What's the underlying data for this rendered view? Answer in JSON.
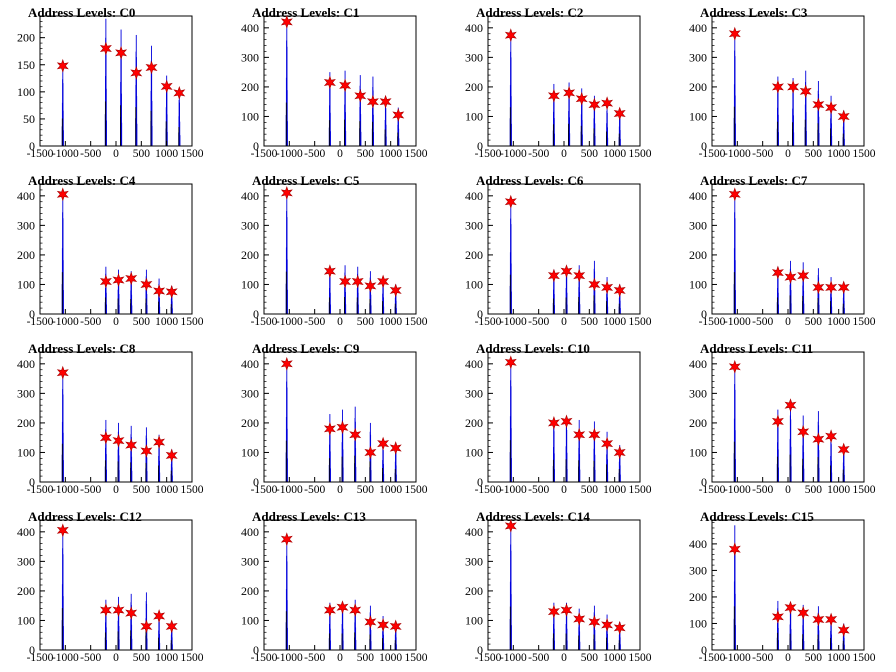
{
  "window": {
    "title": "Address Levels"
  },
  "colors": {
    "hist": "#0000dd",
    "peak_marker": "#ff0000",
    "marker_outline": "#aa0000",
    "axis": "#000000"
  },
  "chart_data": [
    {
      "type": "line",
      "title": "Address Levels: C0",
      "xlim": [
        -1500,
        1500
      ],
      "ylim": [
        0,
        240
      ],
      "yticks": [
        0,
        50,
        100,
        150,
        200
      ],
      "xticks": [
        -1500,
        -1000,
        -500,
        0,
        500,
        1000,
        1500
      ],
      "grid": false,
      "peaks_x": [
        -1050,
        -200,
        100,
        400,
        700,
        1000,
        1250
      ],
      "peaks_y": [
        148,
        180,
        172,
        135,
        145,
        110,
        98
      ],
      "max_y": [
        145,
        235,
        215,
        205,
        185,
        130,
        100
      ]
    },
    {
      "type": "line",
      "title": "Address Levels: C1",
      "xlim": [
        -1500,
        1500
      ],
      "ylim": [
        0,
        440
      ],
      "yticks": [
        0,
        100,
        200,
        300,
        400
      ],
      "xticks": [
        -1500,
        -1000,
        -500,
        0,
        500,
        1000,
        1500
      ],
      "grid": false,
      "peaks_x": [
        -1050,
        -200,
        100,
        400,
        650,
        900,
        1150
      ],
      "peaks_y": [
        420,
        215,
        205,
        170,
        150,
        150,
        105
      ],
      "max_y": [
        420,
        250,
        255,
        240,
        235,
        160,
        130
      ]
    },
    {
      "type": "line",
      "title": "Address Levels: C2",
      "xlim": [
        -1500,
        1500
      ],
      "ylim": [
        0,
        440
      ],
      "yticks": [
        0,
        100,
        200,
        300,
        400
      ],
      "xticks": [
        -1500,
        -1000,
        -500,
        0,
        500,
        1000,
        1500
      ],
      "grid": false,
      "peaks_x": [
        -1050,
        -200,
        100,
        350,
        600,
        850,
        1100
      ],
      "peaks_y": [
        375,
        170,
        180,
        160,
        140,
        145,
        110
      ],
      "max_y": [
        375,
        210,
        215,
        195,
        170,
        140,
        120
      ]
    },
    {
      "type": "line",
      "title": "Address Levels: C3",
      "xlim": [
        -1500,
        1500
      ],
      "ylim": [
        0,
        440
      ],
      "yticks": [
        0,
        100,
        200,
        300,
        400
      ],
      "xticks": [
        -1500,
        -1000,
        -500,
        0,
        500,
        1000,
        1500
      ],
      "grid": false,
      "peaks_x": [
        -1050,
        -200,
        100,
        350,
        600,
        850,
        1100
      ],
      "peaks_y": [
        380,
        200,
        200,
        185,
        140,
        130,
        100
      ],
      "max_y": [
        380,
        235,
        230,
        255,
        220,
        170,
        120
      ]
    },
    {
      "type": "line",
      "title": "Address Levels: C4",
      "xlim": [
        -1500,
        1500
      ],
      "ylim": [
        0,
        440
      ],
      "yticks": [
        0,
        100,
        200,
        300,
        400
      ],
      "xticks": [
        -1500,
        -1000,
        -500,
        0,
        500,
        1000,
        1500
      ],
      "grid": false,
      "peaks_x": [
        -1050,
        -200,
        50,
        300,
        600,
        850,
        1100
      ],
      "peaks_y": [
        405,
        110,
        115,
        120,
        100,
        78,
        75
      ],
      "max_y": [
        405,
        160,
        150,
        145,
        150,
        120,
        95
      ]
    },
    {
      "type": "line",
      "title": "Address Levels: C5",
      "xlim": [
        -1500,
        1500
      ],
      "ylim": [
        0,
        440
      ],
      "yticks": [
        0,
        100,
        200,
        300,
        400
      ],
      "xticks": [
        -1500,
        -1000,
        -500,
        0,
        500,
        1000,
        1500
      ],
      "grid": false,
      "peaks_x": [
        -1050,
        -200,
        100,
        350,
        600,
        850,
        1100
      ],
      "peaks_y": [
        410,
        145,
        110,
        110,
        95,
        110,
        80
      ],
      "max_y": [
        410,
        160,
        165,
        160,
        145,
        125,
        100
      ]
    },
    {
      "type": "line",
      "title": "Address Levels: C6",
      "xlim": [
        -1500,
        1500
      ],
      "ylim": [
        0,
        440
      ],
      "yticks": [
        0,
        100,
        200,
        300,
        400
      ],
      "xticks": [
        -1500,
        -1000,
        -500,
        0,
        500,
        1000,
        1500
      ],
      "grid": false,
      "peaks_x": [
        -1050,
        -200,
        50,
        300,
        600,
        850,
        1100
      ],
      "peaks_y": [
        380,
        130,
        145,
        130,
        100,
        90,
        80
      ],
      "max_y": [
        380,
        150,
        160,
        165,
        180,
        125,
        100
      ]
    },
    {
      "type": "line",
      "title": "Address Levels: C7",
      "xlim": [
        -1500,
        1500
      ],
      "ylim": [
        0,
        440
      ],
      "yticks": [
        0,
        100,
        200,
        300,
        400
      ],
      "xticks": [
        -1500,
        -1000,
        -500,
        0,
        500,
        1000,
        1500
      ],
      "grid": false,
      "peaks_x": [
        -1050,
        -200,
        50,
        300,
        600,
        850,
        1100
      ],
      "peaks_y": [
        405,
        140,
        125,
        130,
        90,
        90,
        90
      ],
      "max_y": [
        405,
        160,
        180,
        175,
        155,
        125,
        100
      ]
    },
    {
      "type": "line",
      "title": "Address Levels: C8",
      "xlim": [
        -1500,
        1500
      ],
      "ylim": [
        0,
        440
      ],
      "yticks": [
        0,
        100,
        200,
        300,
        400
      ],
      "xticks": [
        -1500,
        -1000,
        -500,
        0,
        500,
        1000,
        1500
      ],
      "grid": false,
      "peaks_x": [
        -1050,
        -200,
        50,
        300,
        600,
        850,
        1100
      ],
      "peaks_y": [
        370,
        150,
        140,
        125,
        105,
        135,
        90
      ],
      "max_y": [
        370,
        210,
        200,
        190,
        185,
        160,
        110
      ]
    },
    {
      "type": "line",
      "title": "Address Levels: C9",
      "xlim": [
        -1500,
        1500
      ],
      "ylim": [
        0,
        440
      ],
      "yticks": [
        0,
        100,
        200,
        300,
        400
      ],
      "xticks": [
        -1500,
        -1000,
        -500,
        0,
        500,
        1000,
        1500
      ],
      "grid": false,
      "peaks_x": [
        -1050,
        -200,
        50,
        300,
        600,
        850,
        1100
      ],
      "peaks_y": [
        400,
        180,
        185,
        160,
        100,
        130,
        115
      ],
      "max_y": [
        400,
        230,
        245,
        255,
        200,
        135,
        125
      ]
    },
    {
      "type": "line",
      "title": "Address Levels: C10",
      "xlim": [
        -1500,
        1500
      ],
      "ylim": [
        0,
        440
      ],
      "yticks": [
        0,
        100,
        200,
        300,
        400
      ],
      "xticks": [
        -1500,
        -1000,
        -500,
        0,
        500,
        1000,
        1500
      ],
      "grid": false,
      "peaks_x": [
        -1050,
        -200,
        50,
        300,
        600,
        850,
        1100
      ],
      "peaks_y": [
        405,
        200,
        205,
        160,
        160,
        130,
        100
      ],
      "max_y": [
        405,
        215,
        220,
        210,
        205,
        170,
        125
      ]
    },
    {
      "type": "line",
      "title": "Address Levels: C11",
      "xlim": [
        -1500,
        1500
      ],
      "ylim": [
        0,
        440
      ],
      "yticks": [
        0,
        100,
        200,
        300,
        400
      ],
      "xticks": [
        -1500,
        -1000,
        -500,
        0,
        500,
        1000,
        1500
      ],
      "grid": false,
      "peaks_x": [
        -1050,
        -200,
        50,
        300,
        600,
        850,
        1100
      ],
      "peaks_y": [
        390,
        205,
        260,
        170,
        145,
        155,
        110
      ],
      "max_y": [
        390,
        245,
        265,
        225,
        240,
        160,
        120
      ]
    },
    {
      "type": "line",
      "title": "Address Levels: C12",
      "xlim": [
        -1500,
        1500
      ],
      "ylim": [
        0,
        440
      ],
      "yticks": [
        0,
        100,
        200,
        300,
        400
      ],
      "xticks": [
        -1500,
        -1000,
        -500,
        0,
        500,
        1000,
        1500
      ],
      "grid": false,
      "peaks_x": [
        -1050,
        -200,
        50,
        300,
        600,
        850,
        1100
      ],
      "peaks_y": [
        405,
        135,
        135,
        125,
        80,
        115,
        80
      ],
      "max_y": [
        405,
        170,
        180,
        190,
        195,
        120,
        95
      ]
    },
    {
      "type": "line",
      "title": "Address Levels: C13",
      "xlim": [
        -1500,
        1500
      ],
      "ylim": [
        0,
        440
      ],
      "yticks": [
        0,
        100,
        200,
        300,
        400
      ],
      "xticks": [
        -1500,
        -1000,
        -500,
        0,
        500,
        1000,
        1500
      ],
      "grid": false,
      "peaks_x": [
        -1050,
        -200,
        50,
        300,
        600,
        850,
        1100
      ],
      "peaks_y": [
        375,
        135,
        145,
        135,
        95,
        85,
        80
      ],
      "max_y": [
        375,
        160,
        160,
        170,
        150,
        115,
        95
      ]
    },
    {
      "type": "line",
      "title": "Address Levels: C14",
      "xlim": [
        -1500,
        1500
      ],
      "ylim": [
        0,
        440
      ],
      "yticks": [
        0,
        100,
        200,
        300,
        400
      ],
      "xticks": [
        -1500,
        -1000,
        -500,
        0,
        500,
        1000,
        1500
      ],
      "grid": false,
      "peaks_x": [
        -1050,
        -200,
        50,
        300,
        600,
        850,
        1100
      ],
      "peaks_y": [
        420,
        130,
        135,
        105,
        95,
        85,
        75
      ],
      "max_y": [
        420,
        160,
        160,
        140,
        150,
        120,
        95
      ]
    },
    {
      "type": "line",
      "title": "Address Levels: C15",
      "xlim": [
        -1500,
        1500
      ],
      "ylim": [
        0,
        490
      ],
      "yticks": [
        0,
        100,
        200,
        300,
        400
      ],
      "xticks": [
        -1500,
        -1000,
        -500,
        0,
        500,
        1000,
        1500
      ],
      "grid": false,
      "peaks_x": [
        -1050,
        -200,
        50,
        300,
        600,
        850,
        1100
      ],
      "peaks_y": [
        380,
        125,
        160,
        140,
        115,
        115,
        75
      ],
      "max_y": [
        470,
        185,
        175,
        170,
        165,
        130,
        100
      ]
    }
  ]
}
